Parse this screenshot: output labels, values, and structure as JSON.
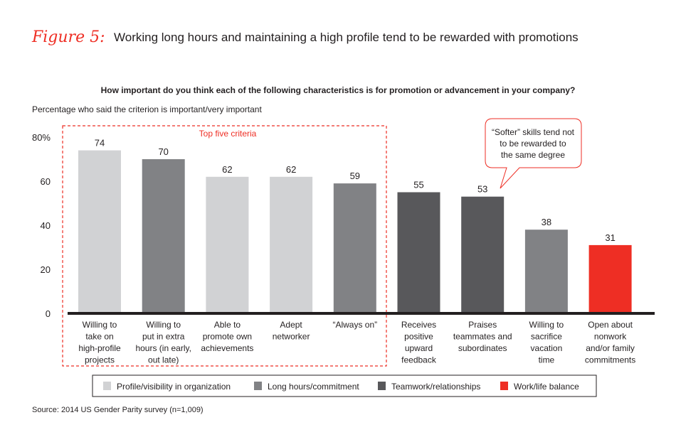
{
  "figure_label": "Figure 5:",
  "chart_data": {
    "type": "bar",
    "title": "Working long hours and maintaining a high profile tend to be rewarded with promotions",
    "subtitle": "How important do you think each of the following characteristics is for promotion or advancement in your company?",
    "ylabel": "Percentage who said the criterion is important/very important",
    "ylim": [
      0,
      80
    ],
    "yticks": [
      0,
      20,
      40,
      60,
      80
    ],
    "ytick_labels": [
      "0",
      "20",
      "40",
      "60",
      "80%"
    ],
    "grid": false,
    "categories": [
      [
        "Willing to",
        "take on",
        "high-profile",
        "projects"
      ],
      [
        "Willing to",
        "put in extra",
        "hours (in early,",
        "out late)"
      ],
      [
        "Able to",
        "promote own",
        "achievements"
      ],
      [
        "Adept",
        "networker"
      ],
      [
        "“Always on”"
      ],
      [
        "Receives",
        "positive",
        "upward",
        "feedback"
      ],
      [
        "Praises",
        "teammates and",
        "subordinates"
      ],
      [
        "Willing to",
        "sacrifice",
        "vacation",
        "time"
      ],
      [
        "Open about",
        "nonwork",
        "and/or family",
        "commitments"
      ]
    ],
    "values": [
      74,
      70,
      62,
      62,
      59,
      55,
      53,
      38,
      31
    ],
    "groups": [
      0,
      1,
      0,
      0,
      1,
      2,
      2,
      1,
      3
    ],
    "legend": [
      {
        "label": "Profile/visibility in organization",
        "color": "#d1d2d4"
      },
      {
        "label": "Long hours/commitment",
        "color": "#818285"
      },
      {
        "label": "Teamwork/relationships",
        "color": "#58585b"
      },
      {
        "label": "Work/life balance",
        "color": "#ee2e24"
      }
    ],
    "legend_position": "bottom",
    "annotations": {
      "box_label": "Top five criteria",
      "callout": [
        "“Softer” skills tend not",
        "to be rewarded to",
        "the same degree"
      ]
    },
    "source": "Source: 2014 US Gender Parity survey (n=1,009)"
  },
  "colors": {
    "accent": "#ee2e24",
    "axis": "#231f20"
  }
}
